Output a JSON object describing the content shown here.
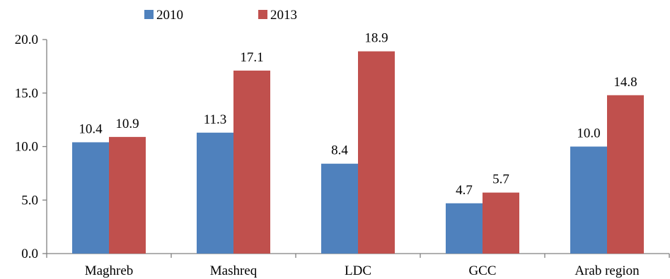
{
  "chart_data": {
    "type": "bar",
    "title": "",
    "xlabel": "",
    "ylabel": "",
    "categories": [
      "Maghreb",
      "Mashreq",
      "LDC",
      "GCC",
      "Arab region"
    ],
    "series": [
      {
        "name": "2010",
        "color": "#4F81BD",
        "values": [
          10.4,
          11.3,
          8.4,
          4.7,
          10.0
        ]
      },
      {
        "name": "2013",
        "color": "#C0504D",
        "values": [
          10.9,
          17.1,
          18.9,
          5.7,
          14.8
        ]
      }
    ],
    "ylim": [
      0,
      20
    ],
    "yticks": [
      0,
      5,
      10,
      15,
      20
    ],
    "ytick_labels": [
      "0.0",
      "5.0",
      "10.0",
      "15.0",
      "20.0"
    ],
    "data_labels": [
      [
        "10.4",
        "11.3",
        "8.4",
        "4.7",
        "10.0"
      ],
      [
        "10.9",
        "17.1",
        "18.9",
        "5.7",
        "14.8"
      ]
    ],
    "legend_position": "top",
    "grid": false
  }
}
